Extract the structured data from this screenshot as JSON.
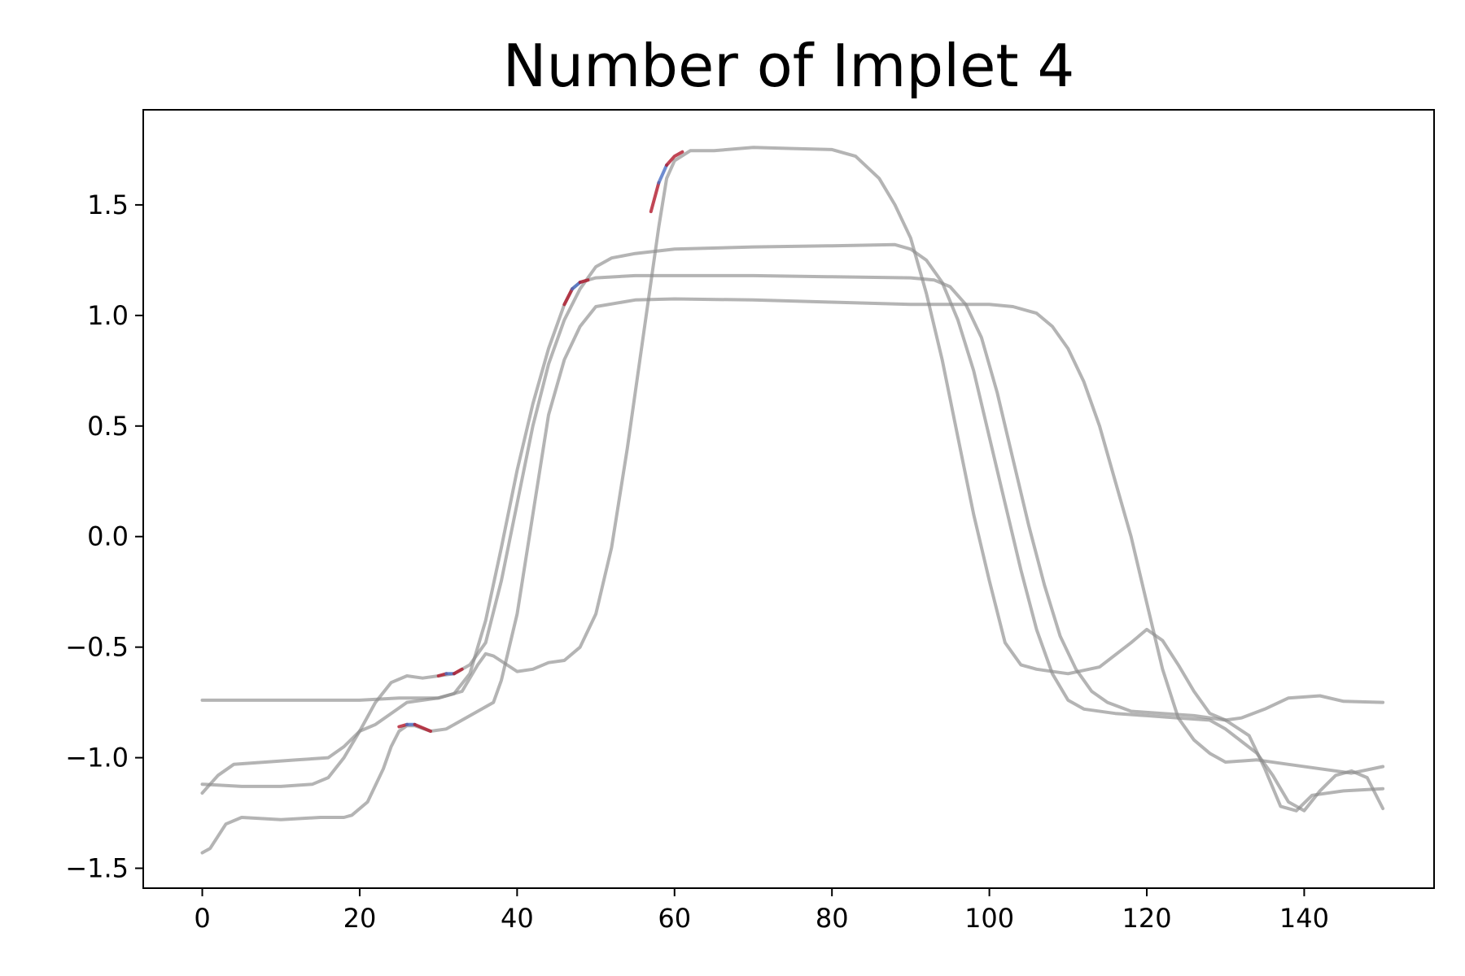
{
  "chart_data": {
    "type": "line",
    "title": "Number of Implet 4",
    "xlabel": "",
    "ylabel": "",
    "xlim": [
      -7.5,
      156.5
    ],
    "ylim": [
      -1.59,
      1.93
    ],
    "xticks": [
      0,
      20,
      40,
      60,
      80,
      100,
      120,
      140
    ],
    "xtick_labels": [
      "0",
      "20",
      "40",
      "60",
      "80",
      "100",
      "120",
      "140"
    ],
    "yticks": [
      -1.5,
      -1.0,
      -0.5,
      0.0,
      0.5,
      1.0,
      1.5
    ],
    "ytick_labels": [
      "−1.5",
      "−1.0",
      "−0.5",
      "0.0",
      "0.5",
      "1.0",
      "1.5"
    ],
    "grid": false,
    "series": [
      {
        "color": "#8c8c8c",
        "points": [
          [
            0,
            -0.74
          ],
          [
            5,
            -0.74
          ],
          [
            10,
            -0.74
          ],
          [
            15,
            -0.74
          ],
          [
            20,
            -0.74
          ],
          [
            25,
            -0.73
          ],
          [
            30,
            -0.73
          ],
          [
            33,
            -0.7
          ],
          [
            35,
            -0.58
          ],
          [
            36,
            -0.53
          ],
          [
            37,
            -0.54
          ],
          [
            40,
            -0.61
          ],
          [
            42,
            -0.6
          ],
          [
            44,
            -0.57
          ],
          [
            46,
            -0.56
          ],
          [
            48,
            -0.5
          ],
          [
            50,
            -0.35
          ],
          [
            52,
            -0.05
          ],
          [
            54,
            0.4
          ],
          [
            56,
            0.9
          ],
          [
            58,
            1.4
          ],
          [
            59,
            1.62
          ],
          [
            60,
            1.7
          ],
          [
            62,
            1.745
          ],
          [
            65,
            1.745
          ],
          [
            70,
            1.76
          ],
          [
            75,
            1.755
          ],
          [
            80,
            1.75
          ],
          [
            83,
            1.72
          ],
          [
            86,
            1.62
          ],
          [
            88,
            1.5
          ],
          [
            90,
            1.35
          ],
          [
            92,
            1.1
          ],
          [
            94,
            0.8
          ],
          [
            96,
            0.45
          ],
          [
            98,
            0.1
          ],
          [
            100,
            -0.2
          ],
          [
            102,
            -0.48
          ],
          [
            104,
            -0.58
          ],
          [
            106,
            -0.6
          ],
          [
            110,
            -0.62
          ],
          [
            114,
            -0.59
          ],
          [
            118,
            -0.48
          ],
          [
            120,
            -0.42
          ],
          [
            122,
            -0.47
          ],
          [
            124,
            -0.58
          ],
          [
            126,
            -0.7
          ],
          [
            128,
            -0.8
          ],
          [
            130,
            -0.83
          ],
          [
            132,
            -0.82
          ],
          [
            135,
            -0.78
          ],
          [
            138,
            -0.73
          ],
          [
            142,
            -0.72
          ],
          [
            145,
            -0.745
          ],
          [
            150,
            -0.75
          ]
        ]
      },
      {
        "color": "#8c8c8c",
        "points": [
          [
            0,
            -1.16
          ],
          [
            2,
            -1.08
          ],
          [
            4,
            -1.03
          ],
          [
            8,
            -1.02
          ],
          [
            12,
            -1.01
          ],
          [
            16,
            -1.0
          ],
          [
            18,
            -0.95
          ],
          [
            20,
            -0.88
          ],
          [
            22,
            -0.85
          ],
          [
            24,
            -0.8
          ],
          [
            26,
            -0.75
          ],
          [
            28,
            -0.74
          ],
          [
            30,
            -0.73
          ],
          [
            32,
            -0.71
          ],
          [
            34,
            -0.62
          ],
          [
            36,
            -0.38
          ],
          [
            38,
            -0.05
          ],
          [
            40,
            0.3
          ],
          [
            42,
            0.6
          ],
          [
            44,
            0.85
          ],
          [
            46,
            1.05
          ],
          [
            47,
            1.12
          ],
          [
            48,
            1.15
          ],
          [
            50,
            1.17
          ],
          [
            55,
            1.18
          ],
          [
            60,
            1.18
          ],
          [
            70,
            1.18
          ],
          [
            80,
            1.175
          ],
          [
            90,
            1.17
          ],
          [
            93,
            1.16
          ],
          [
            95,
            1.13
          ],
          [
            97,
            1.05
          ],
          [
            99,
            0.9
          ],
          [
            101,
            0.65
          ],
          [
            103,
            0.35
          ],
          [
            105,
            0.05
          ],
          [
            107,
            -0.22
          ],
          [
            109,
            -0.45
          ],
          [
            111,
            -0.6
          ],
          [
            113,
            -0.7
          ],
          [
            115,
            -0.75
          ],
          [
            118,
            -0.79
          ],
          [
            122,
            -0.8
          ],
          [
            126,
            -0.81
          ],
          [
            130,
            -0.83
          ],
          [
            133,
            -0.9
          ],
          [
            135,
            -1.05
          ],
          [
            137,
            -1.22
          ],
          [
            139,
            -1.24
          ],
          [
            141,
            -1.17
          ],
          [
            145,
            -1.15
          ],
          [
            150,
            -1.14
          ]
        ]
      },
      {
        "color": "#8c8c8c",
        "points": [
          [
            0,
            -1.12
          ],
          [
            5,
            -1.13
          ],
          [
            10,
            -1.13
          ],
          [
            14,
            -1.12
          ],
          [
            16,
            -1.09
          ],
          [
            18,
            -1.0
          ],
          [
            20,
            -0.88
          ],
          [
            22,
            -0.75
          ],
          [
            24,
            -0.66
          ],
          [
            26,
            -0.63
          ],
          [
            28,
            -0.64
          ],
          [
            30,
            -0.63
          ],
          [
            32,
            -0.62
          ],
          [
            34,
            -0.58
          ],
          [
            36,
            -0.48
          ],
          [
            38,
            -0.2
          ],
          [
            40,
            0.15
          ],
          [
            42,
            0.5
          ],
          [
            44,
            0.78
          ],
          [
            46,
            0.98
          ],
          [
            48,
            1.12
          ],
          [
            50,
            1.22
          ],
          [
            52,
            1.26
          ],
          [
            55,
            1.28
          ],
          [
            60,
            1.3
          ],
          [
            70,
            1.31
          ],
          [
            80,
            1.315
          ],
          [
            88,
            1.32
          ],
          [
            90,
            1.3
          ],
          [
            92,
            1.25
          ],
          [
            94,
            1.15
          ],
          [
            96,
            0.98
          ],
          [
            98,
            0.75
          ],
          [
            100,
            0.45
          ],
          [
            102,
            0.15
          ],
          [
            104,
            -0.15
          ],
          [
            106,
            -0.42
          ],
          [
            108,
            -0.62
          ],
          [
            110,
            -0.74
          ],
          [
            112,
            -0.78
          ],
          [
            116,
            -0.8
          ],
          [
            120,
            -0.81
          ],
          [
            124,
            -0.82
          ],
          [
            128,
            -0.83
          ],
          [
            130,
            -0.87
          ],
          [
            134,
            -0.98
          ],
          [
            136,
            -1.08
          ],
          [
            138,
            -1.2
          ],
          [
            140,
            -1.24
          ],
          [
            142,
            -1.15
          ],
          [
            144,
            -1.08
          ],
          [
            146,
            -1.06
          ],
          [
            148,
            -1.09
          ],
          [
            150,
            -1.23
          ]
        ]
      },
      {
        "color": "#8c8c8c",
        "points": [
          [
            0,
            -1.43
          ],
          [
            1,
            -1.41
          ],
          [
            3,
            -1.3
          ],
          [
            5,
            -1.27
          ],
          [
            10,
            -1.28
          ],
          [
            15,
            -1.27
          ],
          [
            18,
            -1.27
          ],
          [
            19,
            -1.26
          ],
          [
            21,
            -1.2
          ],
          [
            23,
            -1.05
          ],
          [
            24,
            -0.95
          ],
          [
            25,
            -0.88
          ],
          [
            26,
            -0.855
          ],
          [
            27,
            -0.855
          ],
          [
            29,
            -0.88
          ],
          [
            31,
            -0.87
          ],
          [
            33,
            -0.83
          ],
          [
            35,
            -0.79
          ],
          [
            37,
            -0.75
          ],
          [
            38,
            -0.65
          ],
          [
            40,
            -0.35
          ],
          [
            42,
            0.1
          ],
          [
            44,
            0.55
          ],
          [
            46,
            0.8
          ],
          [
            48,
            0.95
          ],
          [
            50,
            1.04
          ],
          [
            55,
            1.07
          ],
          [
            60,
            1.075
          ],
          [
            70,
            1.07
          ],
          [
            80,
            1.06
          ],
          [
            90,
            1.05
          ],
          [
            100,
            1.05
          ],
          [
            103,
            1.04
          ],
          [
            106,
            1.01
          ],
          [
            108,
            0.95
          ],
          [
            110,
            0.85
          ],
          [
            112,
            0.7
          ],
          [
            114,
            0.5
          ],
          [
            116,
            0.25
          ],
          [
            118,
            0.0
          ],
          [
            120,
            -0.3
          ],
          [
            122,
            -0.6
          ],
          [
            124,
            -0.82
          ],
          [
            126,
            -0.92
          ],
          [
            128,
            -0.98
          ],
          [
            130,
            -1.02
          ],
          [
            134,
            -1.01
          ],
          [
            138,
            -1.03
          ],
          [
            142,
            -1.05
          ],
          [
            146,
            -1.07
          ],
          [
            150,
            -1.04
          ]
        ]
      }
    ],
    "highlight_segments": [
      {
        "series": 0,
        "points": [
          [
            57,
            1.47
          ],
          [
            58,
            1.6
          ]
        ],
        "color": "red"
      },
      {
        "series": 0,
        "points": [
          [
            58,
            1.6
          ],
          [
            59,
            1.68
          ]
        ],
        "color": "blue"
      },
      {
        "series": 0,
        "points": [
          [
            59,
            1.68
          ],
          [
            60,
            1.72
          ],
          [
            61,
            1.74
          ]
        ],
        "color": "red"
      },
      {
        "series": 1,
        "points": [
          [
            46,
            1.05
          ],
          [
            47,
            1.12
          ]
        ],
        "color": "red"
      },
      {
        "series": 1,
        "points": [
          [
            47,
            1.12
          ],
          [
            48,
            1.15
          ]
        ],
        "color": "blue"
      },
      {
        "series": 1,
        "points": [
          [
            48,
            1.15
          ],
          [
            49,
            1.16
          ]
        ],
        "color": "red"
      },
      {
        "series": 2,
        "points": [
          [
            30,
            -0.63
          ],
          [
            31,
            -0.62
          ]
        ],
        "color": "red"
      },
      {
        "series": 2,
        "points": [
          [
            31,
            -0.62
          ],
          [
            32,
            -0.62
          ]
        ],
        "color": "blue"
      },
      {
        "series": 2,
        "points": [
          [
            32,
            -0.62
          ],
          [
            33,
            -0.6
          ]
        ],
        "color": "red"
      },
      {
        "series": 3,
        "points": [
          [
            25,
            -0.86
          ],
          [
            26,
            -0.85
          ]
        ],
        "color": "red"
      },
      {
        "series": 3,
        "points": [
          [
            26,
            -0.85
          ],
          [
            27,
            -0.85
          ]
        ],
        "color": "blue"
      },
      {
        "series": 3,
        "points": [
          [
            27,
            -0.85
          ],
          [
            29,
            -0.88
          ]
        ],
        "color": "red"
      }
    ]
  }
}
